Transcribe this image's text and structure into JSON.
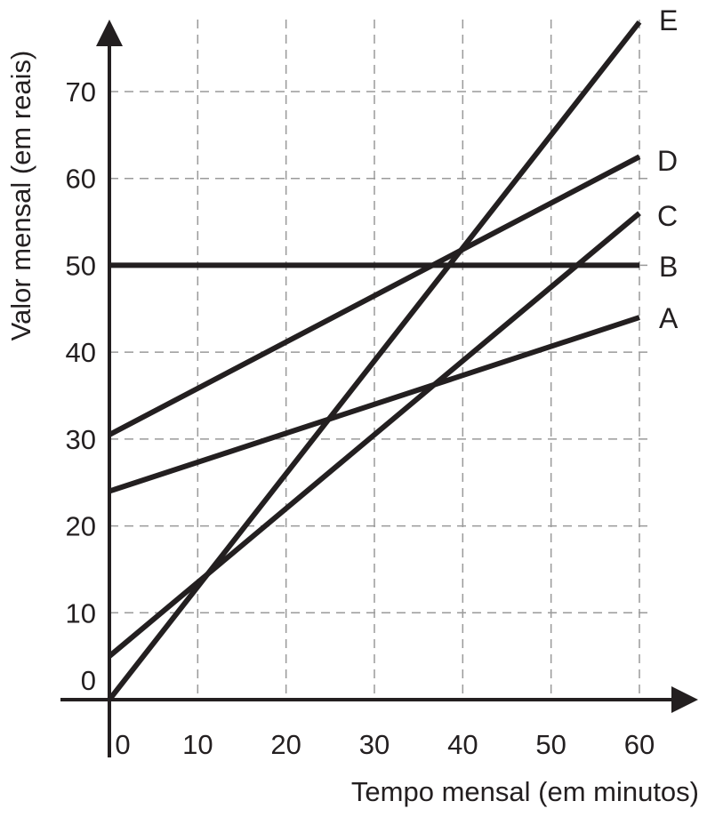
{
  "chart_data": {
    "type": "line",
    "xlabel": "Tempo mensal (em minutos)",
    "ylabel": "Valor mensal (em reais)",
    "xlim": [
      0,
      60
    ],
    "ylim": [
      0,
      70
    ],
    "x_ticks": [
      0,
      10,
      20,
      30,
      40,
      50,
      60
    ],
    "y_ticks": [
      0,
      10,
      20,
      30,
      40,
      50,
      60,
      70
    ],
    "x_tick_labels": [
      "0",
      "10",
      "20",
      "30",
      "40",
      "50",
      "60"
    ],
    "y_tick_labels": [
      "0",
      "10",
      "20",
      "30",
      "40",
      "50",
      "60",
      "70"
    ],
    "grid": true,
    "grid_style": "dashed",
    "line_color": "#231f20",
    "grid_color": "#9a9a9a",
    "series": [
      {
        "name": "A",
        "x": [
          0,
          60
        ],
        "y": [
          24,
          44
        ]
      },
      {
        "name": "B",
        "x": [
          0,
          60
        ],
        "y": [
          50,
          50
        ]
      },
      {
        "name": "C",
        "x": [
          0,
          60
        ],
        "y": [
          5,
          56
        ]
      },
      {
        "name": "D",
        "x": [
          0,
          60
        ],
        "y": [
          30.5,
          62.5
        ]
      },
      {
        "name": "E",
        "x": [
          0,
          60
        ],
        "y": [
          0,
          78
        ]
      }
    ]
  }
}
